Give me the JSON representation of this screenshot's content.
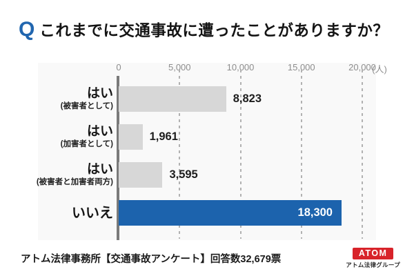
{
  "title": {
    "q_mark": "Q",
    "text": "これまでに交通事故に遭ったことがありますか？"
  },
  "chart_data": {
    "type": "bar",
    "orientation": "horizontal",
    "title": "これまでに交通事故に遭ったことがありますか？",
    "xlabel": "",
    "ylabel": "",
    "unit_label": "(人)",
    "xlim": [
      0,
      20000
    ],
    "grid": true,
    "tick_labels": [
      "0",
      "5,000",
      "10,000",
      "15,000",
      "20,000"
    ],
    "tick_values": [
      0,
      5000,
      10000,
      15000,
      20000
    ],
    "categories": [
      "はい (被害者として)",
      "はい (加害者として)",
      "はい (被害者と加害者両方)",
      "いいえ"
    ],
    "values": [
      8823,
      1961,
      3595,
      18300
    ],
    "rows": [
      {
        "label": "はい",
        "sublabel": "(被害者として)",
        "value": 8823,
        "value_label": "8,823",
        "color": "#d7d7d7",
        "label_inside": false
      },
      {
        "label": "はい",
        "sublabel": "(加害者として)",
        "value": 1961,
        "value_label": "1,961",
        "color": "#d7d7d7",
        "label_inside": false
      },
      {
        "label": "はい",
        "sublabel": "(被害者と加害者両方)",
        "value": 3595,
        "value_label": "3,595",
        "color": "#d7d7d7",
        "label_inside": false
      },
      {
        "label": "いいえ",
        "sublabel": "",
        "value": 18300,
        "value_label": "18,300",
        "color": "#1c63ad",
        "label_inside": true
      }
    ]
  },
  "footer": {
    "source": "アトム法律事務所【交通事故アンケート】回答数32,679票",
    "logo_badge": "ATOM",
    "logo_caption": "アトム法律グループ"
  },
  "colors": {
    "accent_blue": "#1c63ad",
    "bar_gray": "#d7d7d7",
    "q_blue": "#2166af",
    "logo_red": "#d8232a",
    "grid_gray": "#b1b1b1",
    "axis_gray": "#7a7a7a"
  }
}
